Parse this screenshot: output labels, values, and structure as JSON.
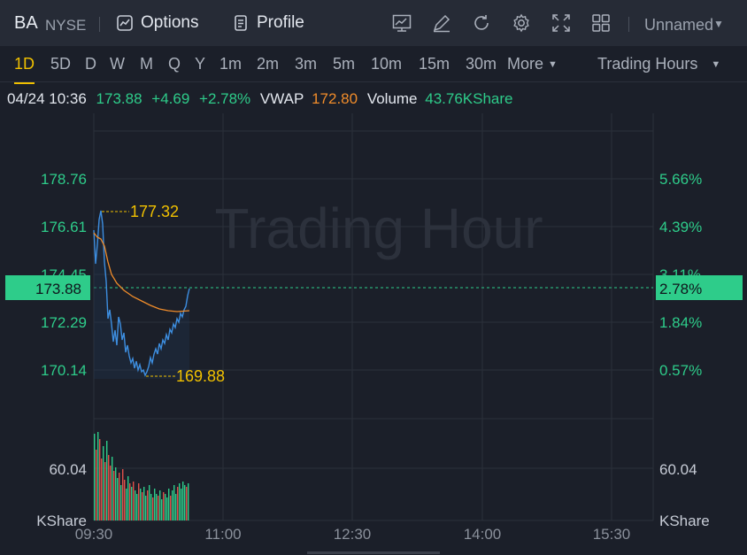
{
  "header": {
    "ticker": "BA",
    "exchange": "NYSE",
    "options_label": "Options",
    "profile_label": "Profile",
    "layout_label": "Unnamed"
  },
  "periods": [
    "1D",
    "5D",
    "D",
    "W",
    "M",
    "Q",
    "Y",
    "1m",
    "2m",
    "3m",
    "5m",
    "10m",
    "15m",
    "30m"
  ],
  "more_label": "More",
  "trading_hours_label": "Trading Hours",
  "quote": {
    "datetime": "04/24 10:36",
    "price": "173.88",
    "change": "+4.69",
    "change_pct": "+2.78%",
    "vwap_label": "VWAP",
    "vwap": "172.80",
    "volume_label": "Volume",
    "volume": "43.76KShare"
  },
  "chart": {
    "watermark": "Trading Hour",
    "price_ticks": [
      "178.76",
      "176.61",
      "174.45",
      "172.29",
      "170.14"
    ],
    "pct_ticks": [
      "5.66%",
      "4.39%",
      "3.11%",
      "1.84%",
      "0.57%"
    ],
    "current_price_label": "173.88",
    "current_pct_label": "2.78%",
    "high_label": "177.32",
    "low_label": "169.88",
    "volume_tick": "60.04",
    "volume_unit": "KShare",
    "time_ticks": [
      "09:30",
      "11:00",
      "12:30",
      "14:00",
      "15:30"
    ]
  },
  "colors": {
    "up": "#2ecc8a",
    "down": "#e0504a",
    "price_line": "#3d8ee0",
    "vwap_line": "#f08c2a",
    "highlight": "#f0c000"
  }
}
